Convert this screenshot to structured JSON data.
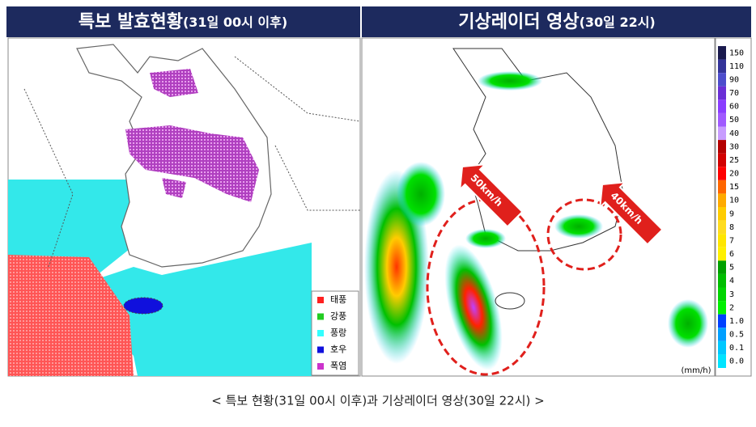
{
  "left_panel": {
    "title": "특보 발효현황",
    "title_note": "(31일 00시 이후)",
    "legend": [
      {
        "label": "태풍",
        "color": "#ff2020"
      },
      {
        "label": "강풍",
        "color": "#22cc22"
      },
      {
        "label": "풍랑",
        "color": "#33ffff"
      },
      {
        "label": "호우",
        "color": "#1010dd"
      },
      {
        "label": "폭염",
        "color": "#cc33cc"
      }
    ]
  },
  "right_panel": {
    "title": "기상레이더 영상",
    "title_note": "(30일 22시)",
    "arrows": [
      "50km/h",
      "40km/h"
    ],
    "unit": "(mm/h)",
    "scale": [
      {
        "label": "150",
        "color": "#1a1a4d"
      },
      {
        "label": "110",
        "color": "#333399"
      },
      {
        "label": "90",
        "color": "#4d4dcc"
      },
      {
        "label": "70",
        "color": "#6a2fd6"
      },
      {
        "label": "60",
        "color": "#8a3dff"
      },
      {
        "label": "50",
        "color": "#a05aff"
      },
      {
        "label": "40",
        "color": "#c89cff"
      },
      {
        "label": "30",
        "color": "#b40000"
      },
      {
        "label": "25",
        "color": "#d20000"
      },
      {
        "label": "20",
        "color": "#ff0000"
      },
      {
        "label": "15",
        "color": "#ff6600"
      },
      {
        "label": "10",
        "color": "#ffaa00"
      },
      {
        "label": "9",
        "color": "#ffcc00"
      },
      {
        "label": "8",
        "color": "#ffdc1f"
      },
      {
        "label": "7",
        "color": "#ffe600"
      },
      {
        "label": "6",
        "color": "#fff000"
      },
      {
        "label": "5",
        "color": "#00a000"
      },
      {
        "label": "4",
        "color": "#00be00"
      },
      {
        "label": "3",
        "color": "#00d500"
      },
      {
        "label": "2",
        "color": "#00f000"
      },
      {
        "label": "1.0",
        "color": "#0040ff"
      },
      {
        "label": "0.5",
        "color": "#009fff"
      },
      {
        "label": "0.1",
        "color": "#00c8ff"
      },
      {
        "label": "0.0",
        "color": "#00e4ff"
      }
    ]
  },
  "caption": "< 특보 현황(31일 00시 이후)과 기상레이더 영상(30일 22시) >"
}
